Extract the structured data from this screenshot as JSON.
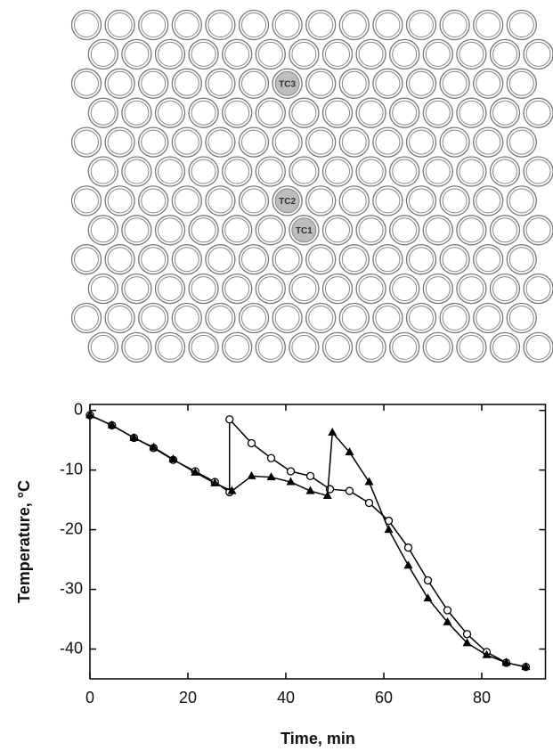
{
  "diagram": {
    "labels": [
      "TC1",
      "TC2",
      "TC3"
    ]
  },
  "chart_data": {
    "type": "line",
    "xlabel": "Time, min",
    "ylabel": "Temperature, °C",
    "xlim": [
      0,
      93
    ],
    "ylim": [
      -45,
      1
    ],
    "xticks": [
      0,
      20,
      40,
      60,
      80
    ],
    "yticks": [
      0,
      -10,
      -20,
      -30,
      -40
    ],
    "series": [
      {
        "color": "#000000",
        "marker": "circle-open",
        "x": [
          0,
          4.5,
          9,
          13,
          17,
          21.5,
          25.5,
          28.5,
          28.5,
          33,
          37,
          41,
          45,
          49,
          53,
          57,
          61,
          65,
          69,
          73,
          77,
          81,
          85,
          89
        ],
        "values": [
          -0.8,
          -2.5,
          -4.6,
          -6.3,
          -8.3,
          -10.2,
          -12,
          -13.7,
          -1.5,
          -5.5,
          -8,
          -10.2,
          -11,
          -13.2,
          -13.5,
          -15.5,
          -18.5,
          -23,
          -28.5,
          -33.5,
          -37.5,
          -40.5,
          -42.3,
          -43
        ]
      },
      {
        "color": "#000000",
        "marker": "triangle-filled",
        "x": [
          0,
          4.5,
          9,
          13,
          17,
          21.5,
          25.5,
          29,
          33,
          37,
          41,
          45,
          48.5,
          49.5,
          53,
          57,
          61,
          65,
          69,
          73,
          77,
          81,
          85,
          89
        ],
        "values": [
          -0.8,
          -2.5,
          -4.6,
          -6.2,
          -8.2,
          -10.4,
          -12.2,
          -13.5,
          -11,
          -11.2,
          -12,
          -13.5,
          -14.3,
          -3.7,
          -7,
          -12,
          -20,
          -26,
          -31.5,
          -35.5,
          -39,
          -41,
          -42.3,
          -43
        ]
      }
    ]
  }
}
